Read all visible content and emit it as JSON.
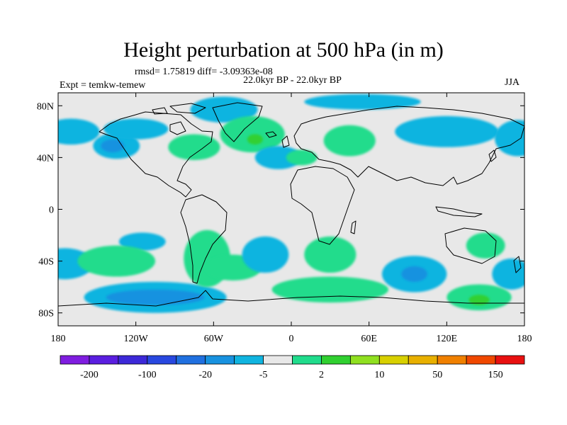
{
  "title": "Height perturbation at 500 hPa (in m)",
  "stats_line": "rmsd= 1.75819 diff= -3.09363e-08",
  "subtitle": "22.0kyr BP - 22.0kyr BP",
  "expt_label": "Expt = temkw-temew",
  "season": "JJA",
  "chart_data": {
    "type": "heatmap",
    "title": "Height perturbation at 500 hPa (in m)",
    "projection": "cylindrical equidistant",
    "xlim": [
      -180,
      180
    ],
    "ylim": [
      -90,
      90
    ],
    "x_ticks": [
      {
        "value": -180,
        "label": "180"
      },
      {
        "value": -120,
        "label": "120W"
      },
      {
        "value": -60,
        "label": "60W"
      },
      {
        "value": 0,
        "label": "0"
      },
      {
        "value": 60,
        "label": "60E"
      },
      {
        "value": 120,
        "label": "120E"
      },
      {
        "value": 180,
        "label": "180"
      }
    ],
    "y_ticks": [
      {
        "value": 80,
        "label": "80N"
      },
      {
        "value": 40,
        "label": "40N"
      },
      {
        "value": 0,
        "label": "0"
      },
      {
        "value": -40,
        "label": "40S"
      },
      {
        "value": -80,
        "label": "80S"
      }
    ],
    "background_color": "#e8e8e8",
    "levels": [
      -200,
      -100,
      -20,
      -5,
      2,
      10,
      50,
      150
    ],
    "colorbar": {
      "colors": [
        "#7f1de0",
        "#5a1ee0",
        "#3c28d8",
        "#2848e0",
        "#2070e0",
        "#1892e0",
        "#10b4e0",
        "#e8e8e8",
        "#20dc8c",
        "#30d030",
        "#90e020",
        "#d8d000",
        "#e8b000",
        "#f08000",
        "#f04800",
        "#e81010"
      ],
      "labels": [
        "-200",
        "-100",
        "-20",
        "-5",
        "2",
        "10",
        "50",
        "150"
      ]
    },
    "anomalies": [
      {
        "lon": -170,
        "lat": 60,
        "rlon": 22,
        "rlat": 10,
        "color": "#10b4e0"
      },
      {
        "lon": -135,
        "lat": 49,
        "rlon": 18,
        "rlat": 10,
        "color": "#10b4e0"
      },
      {
        "lon": -138,
        "lat": 49,
        "rlon": 9,
        "rlat": 5,
        "color": "#1892e0"
      },
      {
        "lon": -120,
        "lat": 62,
        "rlon": 25,
        "rlat": 8,
        "color": "#10b4e0"
      },
      {
        "lon": -75,
        "lat": 48,
        "rlon": 20,
        "rlat": 10,
        "color": "#20dc8c"
      },
      {
        "lon": -52,
        "lat": 77,
        "rlon": 26,
        "rlat": 10,
        "color": "#10b4e0"
      },
      {
        "lon": -30,
        "lat": 58,
        "rlon": 25,
        "rlat": 14,
        "color": "#20dc8c"
      },
      {
        "lon": -28,
        "lat": 54,
        "rlon": 6,
        "rlat": 4,
        "color": "#30d030"
      },
      {
        "lon": -10,
        "lat": 40,
        "rlon": 18,
        "rlat": 9,
        "color": "#10b4e0"
      },
      {
        "lon": 8,
        "lat": 40,
        "rlon": 12,
        "rlat": 6,
        "color": "#20dc8c"
      },
      {
        "lon": 45,
        "lat": 53,
        "rlon": 20,
        "rlat": 12,
        "color": "#20dc8c"
      },
      {
        "lon": 55,
        "lat": 83,
        "rlon": 45,
        "rlat": 6,
        "color": "#10b4e0"
      },
      {
        "lon": 120,
        "lat": 60,
        "rlon": 40,
        "rlat": 12,
        "color": "#10b4e0"
      },
      {
        "lon": 175,
        "lat": 55,
        "rlon": 18,
        "rlat": 14,
        "color": "#10b4e0"
      },
      {
        "lon": -175,
        "lat": -42,
        "rlon": 22,
        "rlat": 12,
        "color": "#10b4e0"
      },
      {
        "lon": -115,
        "lat": -25,
        "rlon": 18,
        "rlat": 7,
        "color": "#10b4e0"
      },
      {
        "lon": -135,
        "lat": -40,
        "rlon": 30,
        "rlat": 12,
        "color": "#20dc8c"
      },
      {
        "lon": -105,
        "lat": -68,
        "rlon": 55,
        "rlat": 12,
        "color": "#10b4e0"
      },
      {
        "lon": -105,
        "lat": -68,
        "rlon": 38,
        "rlat": 6,
        "color": "#1892e0"
      },
      {
        "lon": -65,
        "lat": -38,
        "rlon": 18,
        "rlat": 22,
        "color": "#20dc8c"
      },
      {
        "lon": -45,
        "lat": -45,
        "rlon": 22,
        "rlat": 10,
        "color": "#20dc8c"
      },
      {
        "lon": -20,
        "lat": -35,
        "rlon": 18,
        "rlat": 14,
        "color": "#10b4e0"
      },
      {
        "lon": 30,
        "lat": -35,
        "rlon": 20,
        "rlat": 14,
        "color": "#20dc8c"
      },
      {
        "lon": 30,
        "lat": -62,
        "rlon": 45,
        "rlat": 10,
        "color": "#20dc8c"
      },
      {
        "lon": 95,
        "lat": -50,
        "rlon": 25,
        "rlat": 14,
        "color": "#10b4e0"
      },
      {
        "lon": 95,
        "lat": -50,
        "rlon": 10,
        "rlat": 6,
        "color": "#1892e0"
      },
      {
        "lon": 150,
        "lat": -28,
        "rlon": 15,
        "rlat": 10,
        "color": "#20dc8c"
      },
      {
        "lon": 170,
        "lat": -50,
        "rlon": 15,
        "rlat": 12,
        "color": "#10b4e0"
      },
      {
        "lon": 145,
        "lat": -68,
        "rlon": 25,
        "rlat": 10,
        "color": "#20dc8c"
      },
      {
        "lon": 145,
        "lat": -70,
        "rlon": 8,
        "rlat": 4,
        "color": "#30d030"
      }
    ]
  }
}
